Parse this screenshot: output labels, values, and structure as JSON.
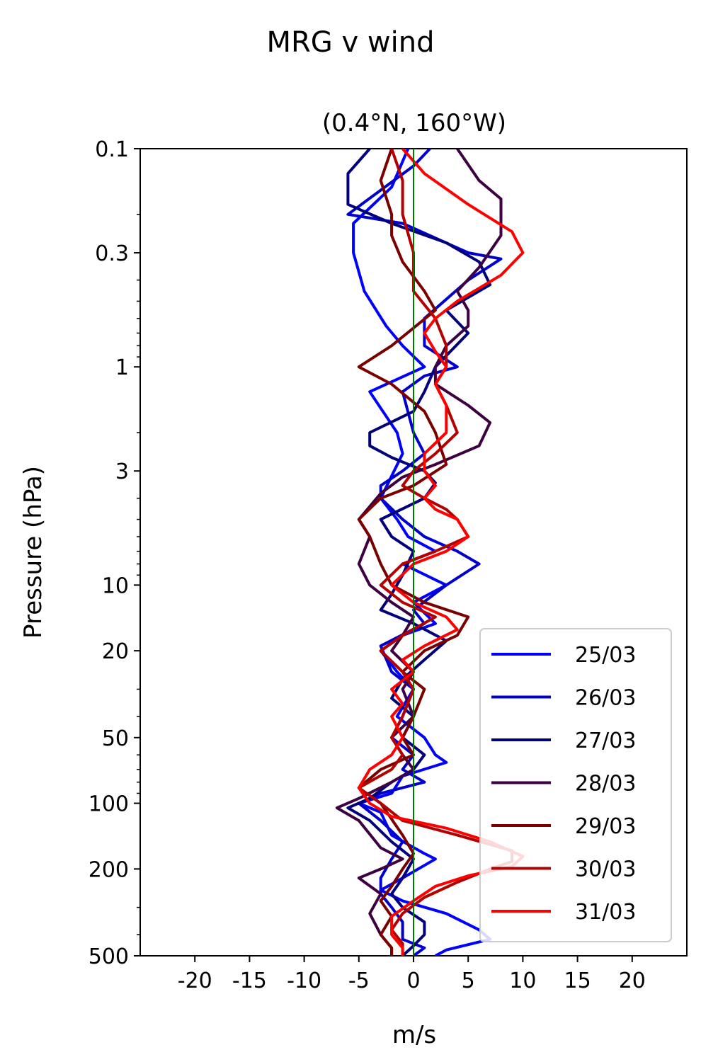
{
  "chart_data": {
    "type": "line",
    "title": "MRG v wind",
    "subtitle": "(0.4°N, 160°W)",
    "xlabel": "m/s",
    "ylabel": "Pressure (hPa)",
    "xlim": [
      -25,
      25
    ],
    "ylim": [
      500,
      0.1
    ],
    "yscale": "log",
    "x_ticks": [
      -20,
      -15,
      -10,
      -5,
      0,
      5,
      10,
      15,
      20
    ],
    "x_tick_labels": [
      "-20",
      "-15",
      "-10",
      "-5",
      "0",
      "5",
      "10",
      "15",
      "20"
    ],
    "y_ticks": [
      0.1,
      0.3,
      1,
      3,
      10,
      20,
      50,
      100,
      200,
      500
    ],
    "y_tick_labels": [
      "0.1",
      "0.3",
      "1",
      "3",
      "10",
      "20",
      "50",
      "100",
      "200",
      "500"
    ],
    "zero_line_color": "#007a00",
    "legend": {
      "placement": "lower-right"
    },
    "series": [
      {
        "name": "25/03",
        "color": "#0000ff",
        "points": [
          [
            -0.5,
            0.1
          ],
          [
            -2,
            0.15
          ],
          [
            -5.5,
            0.22
          ],
          [
            -5.5,
            0.3
          ],
          [
            -4.5,
            0.45
          ],
          [
            -2.5,
            0.65
          ],
          [
            -1,
            0.8
          ],
          [
            1,
            1
          ],
          [
            -4,
            1.3
          ],
          [
            -1.5,
            2
          ],
          [
            -1,
            2.5
          ],
          [
            -3,
            4
          ],
          [
            -1.5,
            5
          ],
          [
            -0.5,
            6
          ],
          [
            2,
            7
          ],
          [
            -1,
            8
          ],
          [
            3,
            10
          ],
          [
            0,
            12
          ],
          [
            2,
            15
          ],
          [
            -1,
            17
          ],
          [
            -3,
            20
          ],
          [
            -1.5,
            25
          ],
          [
            0,
            30
          ],
          [
            -1.5,
            40
          ],
          [
            1,
            50
          ],
          [
            2,
            60
          ],
          [
            3,
            65
          ],
          [
            -1,
            75
          ],
          [
            -2,
            90
          ],
          [
            -5,
            100
          ],
          [
            -3,
            110
          ],
          [
            -2,
            140
          ],
          [
            1,
            170
          ],
          [
            2,
            180
          ],
          [
            -1,
            220
          ],
          [
            -3,
            250
          ],
          [
            -1,
            280
          ],
          [
            3,
            320
          ],
          [
            6,
            380
          ],
          [
            7,
            420
          ],
          [
            3,
            470
          ],
          [
            2,
            500
          ]
        ]
      },
      {
        "name": "26/03",
        "color": "#0000cc",
        "points": [
          [
            1.5,
            0.1
          ],
          [
            0,
            0.12
          ],
          [
            -6,
            0.2
          ],
          [
            -1,
            0.22
          ],
          [
            5,
            0.3
          ],
          [
            8,
            0.32
          ],
          [
            5,
            0.4
          ],
          [
            1,
            0.6
          ],
          [
            1,
            0.8
          ],
          [
            4,
            1
          ],
          [
            1,
            1.1
          ],
          [
            -1,
            1.3
          ],
          [
            0,
            2
          ],
          [
            1,
            2.5
          ],
          [
            -1,
            3
          ],
          [
            -3,
            3.5
          ],
          [
            -3,
            4
          ],
          [
            -1,
            5
          ],
          [
            1,
            6
          ],
          [
            4,
            7
          ],
          [
            6,
            8
          ],
          [
            3,
            10
          ],
          [
            0,
            13
          ],
          [
            1,
            15
          ],
          [
            -3,
            19
          ],
          [
            -2,
            25
          ],
          [
            0,
            30
          ],
          [
            -1,
            40
          ],
          [
            -2,
            50
          ],
          [
            0,
            60
          ],
          [
            -1,
            70
          ],
          [
            1,
            80
          ],
          [
            -3,
            90
          ],
          [
            -5,
            100
          ],
          [
            -3,
            120
          ],
          [
            -1,
            150
          ],
          [
            -2,
            180
          ],
          [
            -3,
            220
          ],
          [
            -3,
            260
          ],
          [
            -2,
            300
          ],
          [
            -1,
            350
          ],
          [
            -1,
            420
          ],
          [
            1,
            460
          ],
          [
            0,
            500
          ]
        ]
      },
      {
        "name": "27/03",
        "color": "#00007a",
        "points": [
          [
            -4,
            0.1
          ],
          [
            -6,
            0.13
          ],
          [
            -6,
            0.18
          ],
          [
            -2,
            0.22
          ],
          [
            3,
            0.27
          ],
          [
            6,
            0.33
          ],
          [
            7,
            0.42
          ],
          [
            3,
            0.55
          ],
          [
            5,
            0.7
          ],
          [
            2,
            1
          ],
          [
            1,
            1.3
          ],
          [
            0,
            1.6
          ],
          [
            -4,
            2
          ],
          [
            -4,
            2.3
          ],
          [
            -2,
            2.6
          ],
          [
            1,
            3
          ],
          [
            2,
            3.4
          ],
          [
            1,
            4
          ],
          [
            -3,
            5
          ],
          [
            -2,
            6
          ],
          [
            0,
            7
          ],
          [
            -1,
            9
          ],
          [
            -2,
            11
          ],
          [
            -3,
            13
          ],
          [
            0,
            15
          ],
          [
            3,
            18
          ],
          [
            1,
            22
          ],
          [
            -1,
            27
          ],
          [
            -2,
            33
          ],
          [
            0,
            40
          ],
          [
            -1,
            50
          ],
          [
            1,
            60
          ],
          [
            0,
            70
          ],
          [
            -2,
            80
          ],
          [
            -4,
            95
          ],
          [
            -6,
            105
          ],
          [
            -4,
            120
          ],
          [
            -2,
            150
          ],
          [
            0,
            180
          ],
          [
            -1,
            220
          ],
          [
            -2,
            260
          ],
          [
            -1,
            300
          ],
          [
            1,
            350
          ],
          [
            1,
            400
          ],
          [
            0,
            450
          ],
          [
            -1,
            500
          ]
        ]
      },
      {
        "name": "28/03",
        "color": "#3d0040",
        "points": [
          [
            4,
            0.1
          ],
          [
            6,
            0.14
          ],
          [
            8,
            0.17
          ],
          [
            8,
            0.25
          ],
          [
            6,
            0.35
          ],
          [
            4,
            0.45
          ],
          [
            5,
            0.55
          ],
          [
            5,
            0.65
          ],
          [
            3,
            0.8
          ],
          [
            2,
            1
          ],
          [
            2,
            1.2
          ],
          [
            5,
            1.5
          ],
          [
            7,
            1.8
          ],
          [
            6,
            2.3
          ],
          [
            2,
            2.8
          ],
          [
            -1,
            3.2
          ],
          [
            -3,
            3.8
          ],
          [
            -5,
            5
          ],
          [
            -4,
            6
          ],
          [
            -5,
            8
          ],
          [
            -4,
            10
          ],
          [
            -2,
            12
          ],
          [
            0,
            14
          ],
          [
            -1,
            17
          ],
          [
            -2,
            20
          ],
          [
            0,
            25
          ],
          [
            -1,
            30
          ],
          [
            0,
            40
          ],
          [
            -2,
            50
          ],
          [
            -1,
            60
          ],
          [
            0,
            70
          ],
          [
            -2,
            80
          ],
          [
            -5,
            95
          ],
          [
            -7,
            105
          ],
          [
            -5,
            120
          ],
          [
            -3,
            160
          ],
          [
            -1,
            180
          ],
          [
            -3,
            200
          ],
          [
            -5,
            220
          ],
          [
            -3,
            260
          ],
          [
            -4,
            320
          ],
          [
            -3,
            400
          ],
          [
            -2,
            460
          ],
          [
            -2,
            500
          ]
        ]
      },
      {
        "name": "29/03",
        "color": "#7a0000",
        "points": [
          [
            -2,
            0.1
          ],
          [
            -3,
            0.14
          ],
          [
            -2,
            0.2
          ],
          [
            -2,
            0.25
          ],
          [
            -1,
            0.33
          ],
          [
            1,
            0.45
          ],
          [
            2,
            0.55
          ],
          [
            -2,
            0.8
          ],
          [
            -5,
            1
          ],
          [
            -2,
            1.2
          ],
          [
            1,
            1.6
          ],
          [
            2,
            2
          ],
          [
            3,
            2.8
          ],
          [
            0,
            3.5
          ],
          [
            -3,
            4
          ],
          [
            -5,
            5
          ],
          [
            -4,
            6
          ],
          [
            -3,
            8
          ],
          [
            -2,
            10
          ],
          [
            1,
            12
          ],
          [
            5,
            14
          ],
          [
            4,
            17
          ],
          [
            1,
            20
          ],
          [
            -1,
            25
          ],
          [
            1,
            30
          ],
          [
            0,
            40
          ],
          [
            -1,
            50
          ],
          [
            0,
            60
          ],
          [
            -3,
            70
          ],
          [
            -5,
            85
          ],
          [
            -3,
            100
          ],
          [
            -1,
            140
          ],
          [
            0,
            170
          ],
          [
            -1,
            200
          ],
          [
            -2,
            240
          ],
          [
            -3,
            280
          ],
          [
            -2,
            330
          ],
          [
            -3,
            400
          ],
          [
            -2,
            460
          ],
          [
            -2,
            500
          ]
        ]
      },
      {
        "name": "30/03",
        "color": "#b30000",
        "points": [
          [
            -2,
            0.1
          ],
          [
            -1,
            0.14
          ],
          [
            -1,
            0.2
          ],
          [
            0,
            0.3
          ],
          [
            0,
            0.45
          ],
          [
            2,
            0.6
          ],
          [
            3,
            0.8
          ],
          [
            3,
            1
          ],
          [
            2,
            1.2
          ],
          [
            3,
            1.5
          ],
          [
            4,
            2
          ],
          [
            2,
            2.5
          ],
          [
            0,
            3
          ],
          [
            -1,
            3.5
          ],
          [
            1,
            4
          ],
          [
            3,
            4.5
          ],
          [
            4,
            5
          ],
          [
            5,
            6
          ],
          [
            2,
            7
          ],
          [
            -1,
            8
          ],
          [
            -3,
            10
          ],
          [
            -1,
            12
          ],
          [
            2,
            14
          ],
          [
            -1,
            17
          ],
          [
            -3,
            20
          ],
          [
            -1,
            25
          ],
          [
            0,
            30
          ],
          [
            -1,
            40
          ],
          [
            -2,
            50
          ],
          [
            -1,
            60
          ],
          [
            -2,
            70
          ],
          [
            -5,
            85
          ],
          [
            -3,
            100
          ],
          [
            -1,
            120
          ],
          [
            4,
            140
          ],
          [
            9,
            165
          ],
          [
            9,
            185
          ],
          [
            7,
            200
          ],
          [
            4,
            230
          ],
          [
            1,
            270
          ],
          [
            -1,
            320
          ],
          [
            -2,
            380
          ],
          [
            -1,
            440
          ],
          [
            -1,
            500
          ]
        ]
      },
      {
        "name": "31/03",
        "color": "#ff0000",
        "points": [
          [
            -1,
            0.1
          ],
          [
            1,
            0.13
          ],
          [
            5,
            0.18
          ],
          [
            9,
            0.24
          ],
          [
            10,
            0.3
          ],
          [
            8,
            0.38
          ],
          [
            4,
            0.5
          ],
          [
            2,
            0.6
          ],
          [
            1,
            0.7
          ],
          [
            2,
            0.85
          ],
          [
            3,
            1
          ],
          [
            2,
            1.2
          ],
          [
            3,
            1.5
          ],
          [
            3,
            2
          ],
          [
            1,
            2.5
          ],
          [
            1,
            3
          ],
          [
            2,
            3.5
          ],
          [
            1,
            4
          ],
          [
            2,
            4.5
          ],
          [
            4,
            5
          ],
          [
            5,
            6
          ],
          [
            3,
            7
          ],
          [
            0,
            8
          ],
          [
            -2,
            10
          ],
          [
            0,
            12
          ],
          [
            3,
            14
          ],
          [
            4,
            16
          ],
          [
            1,
            19
          ],
          [
            -1,
            22
          ],
          [
            0,
            25
          ],
          [
            -2,
            30
          ],
          [
            -1,
            35
          ],
          [
            -2,
            40
          ],
          [
            -1,
            50
          ],
          [
            -2,
            60
          ],
          [
            -4,
            70
          ],
          [
            -5,
            85
          ],
          [
            -4,
            100
          ],
          [
            -2,
            115
          ],
          [
            3,
            130
          ],
          [
            7,
            150
          ],
          [
            10,
            175
          ],
          [
            9,
            195
          ],
          [
            5,
            215
          ],
          [
            2,
            240
          ],
          [
            0,
            280
          ],
          [
            -2,
            330
          ],
          [
            -2,
            400
          ],
          [
            -1,
            460
          ],
          [
            -1,
            500
          ]
        ]
      }
    ]
  }
}
